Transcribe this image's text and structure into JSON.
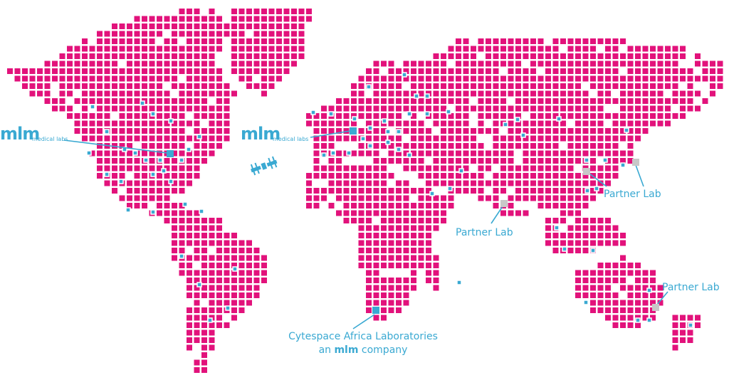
{
  "logos": [
    {
      "brand": "mlm",
      "subtitle": "medical labs"
    },
    {
      "brand": "mlm",
      "subtitle": "medical labs"
    }
  ],
  "partners": [
    "Partner Lab",
    "Partner Lab",
    "Partner Lab"
  ],
  "cytespace": {
    "name": "Cytespace Africa Laboratories",
    "pre": "an",
    "brand": "mlm",
    "post": "company"
  }
}
